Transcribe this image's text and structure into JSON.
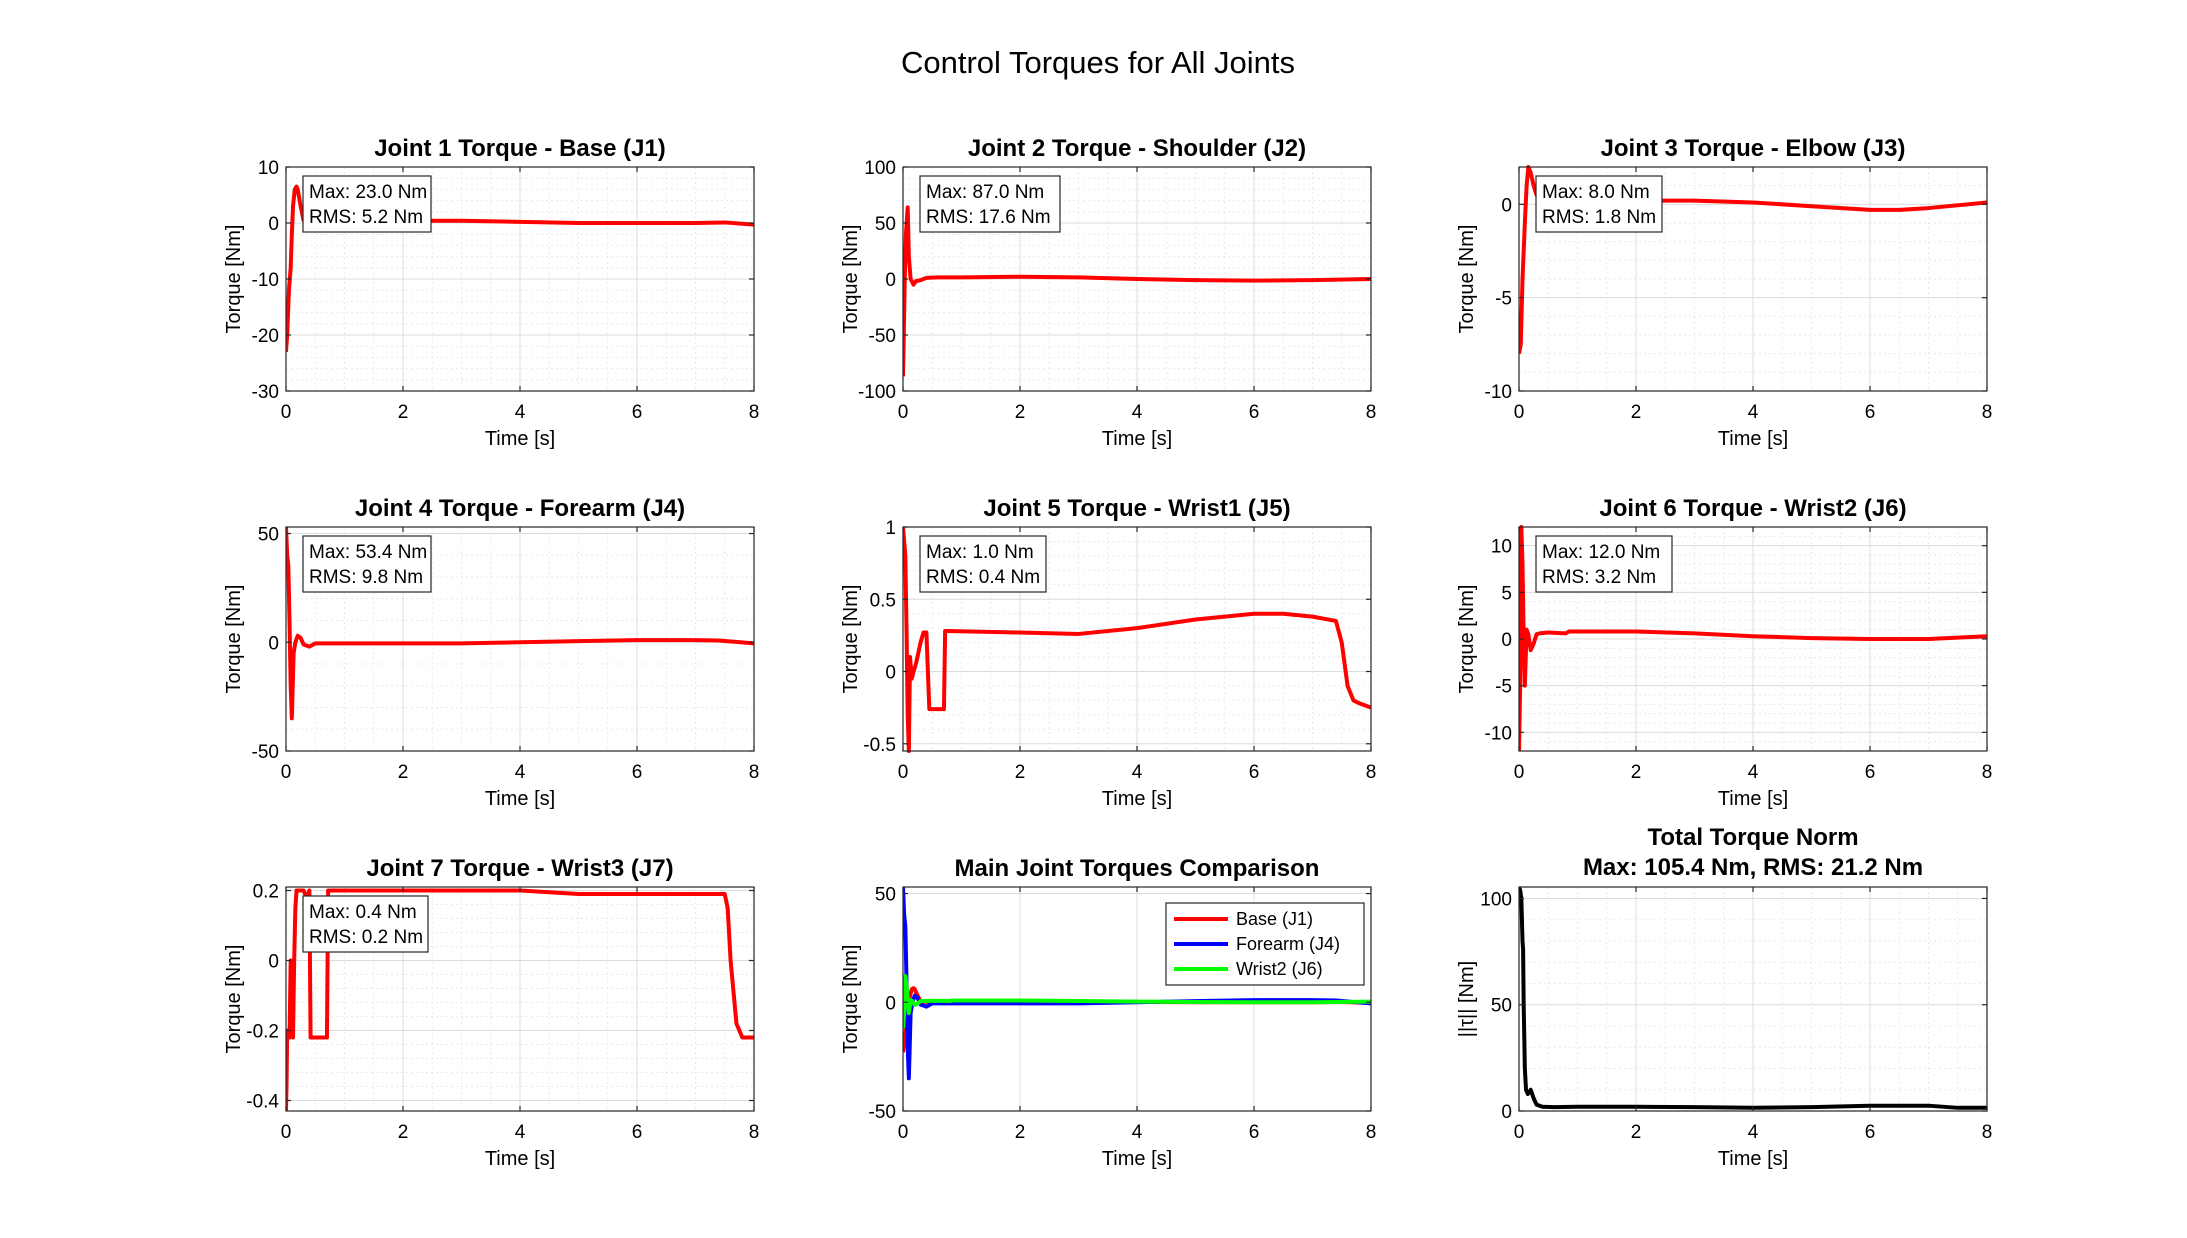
{
  "figure": {
    "title": "Control Torques for All Joints"
  },
  "chart_data": [
    {
      "type": "line",
      "title": "Joint 1 Torque - Base (J1)",
      "xlabel": "Time [s]",
      "ylabel": "Torque [Nm]",
      "xlim": [
        0,
        8
      ],
      "ylim": [
        -30,
        10
      ],
      "xticks": [
        "0",
        "2",
        "4",
        "6",
        "8"
      ],
      "yticks": [
        "-30",
        "-20",
        "-10",
        "0",
        "10"
      ],
      "grid": true,
      "minor_grid": true,
      "annotation": [
        "Max: 23.0 Nm",
        "RMS: 5.2 Nm"
      ],
      "series": [
        {
          "color": "#ff0000",
          "x": [
            0,
            0.02,
            0.05,
            0.08,
            0.1,
            0.12,
            0.15,
            0.18,
            0.2,
            0.25,
            0.3,
            0.4,
            0.6,
            1,
            2,
            3,
            4,
            5,
            6,
            7,
            7.5,
            8
          ],
          "y": [
            -23,
            -20,
            -12,
            -8,
            -2,
            3,
            6,
            6.5,
            6,
            3,
            0.5,
            0.2,
            0.4,
            0.4,
            0.4,
            0.4,
            0.2,
            0,
            0,
            0,
            0.1,
            -0.3
          ]
        }
      ]
    },
    {
      "type": "line",
      "title": "Joint 2 Torque - Shoulder (J2)",
      "xlabel": "Time [s]",
      "ylabel": "Torque [Nm]",
      "xlim": [
        0,
        8
      ],
      "ylim": [
        -100,
        100
      ],
      "xticks": [
        "0",
        "2",
        "4",
        "6",
        "8"
      ],
      "yticks": [
        "-100",
        "-50",
        "0",
        "50",
        "100"
      ],
      "grid": true,
      "minor_grid": true,
      "annotation": [
        "Max: 87.0 Nm",
        "RMS: 17.6 Nm"
      ],
      "series": [
        {
          "color": "#ff0000",
          "x": [
            0,
            0.01,
            0.03,
            0.05,
            0.08,
            0.1,
            0.13,
            0.18,
            0.22,
            0.3,
            0.4,
            0.6,
            1,
            2,
            3,
            4,
            5,
            6,
            7,
            8
          ],
          "y": [
            -87,
            -60,
            0,
            40,
            64,
            20,
            0,
            -5,
            -2,
            -1,
            1,
            1.5,
            1.5,
            2,
            1.5,
            0,
            -1,
            -1.5,
            -1,
            0
          ]
        }
      ]
    },
    {
      "type": "line",
      "title": "Joint 3 Torque - Elbow (J3)",
      "xlabel": "Time [s]",
      "ylabel": "Torque [Nm]",
      "xlim": [
        0,
        8
      ],
      "ylim": [
        -10,
        2
      ],
      "xticks": [
        "0",
        "2",
        "4",
        "6",
        "8"
      ],
      "yticks": [
        "-10",
        "-5",
        "0"
      ],
      "grid": true,
      "minor_grid": true,
      "annotation": [
        "Max: 8.0 Nm",
        "RMS: 1.8 Nm"
      ],
      "series": [
        {
          "color": "#ff0000",
          "x": [
            0,
            0.03,
            0.06,
            0.08,
            0.1,
            0.13,
            0.16,
            0.2,
            0.25,
            0.3,
            0.4,
            0.6,
            1,
            2,
            3,
            4,
            5,
            6,
            6.5,
            7,
            8
          ],
          "y": [
            -8,
            -7.5,
            -4,
            -2.5,
            -1,
            1,
            2,
            1.7,
            1,
            0.5,
            0.3,
            0.2,
            0.2,
            0.2,
            0.2,
            0.1,
            -0.1,
            -0.3,
            -0.3,
            -0.2,
            0.1
          ]
        }
      ]
    },
    {
      "type": "line",
      "title": "Joint 4 Torque - Forearm (J4)",
      "xlabel": "Time [s]",
      "ylabel": "Torque [Nm]",
      "xlim": [
        0,
        8
      ],
      "ylim": [
        -50,
        53
      ],
      "xticks": [
        "0",
        "2",
        "4",
        "6",
        "8"
      ],
      "yticks": [
        "-50",
        "0",
        "50"
      ],
      "grid": true,
      "minor_grid": true,
      "annotation": [
        "Max: 53.4 Nm",
        "RMS: 9.8 Nm"
      ],
      "series": [
        {
          "color": "#ff0000",
          "x": [
            0,
            0.02,
            0.04,
            0.06,
            0.08,
            0.1,
            0.13,
            0.16,
            0.2,
            0.25,
            0.3,
            0.4,
            0.5,
            1,
            2,
            3,
            4,
            5,
            6,
            7,
            7.4,
            8
          ],
          "y": [
            53,
            40,
            35,
            10,
            -20,
            -35,
            -5,
            0,
            3,
            2,
            -1,
            -2,
            -0.5,
            -0.5,
            -0.5,
            -0.5,
            0,
            0.5,
            1,
            1,
            0.8,
            -0.5
          ]
        }
      ]
    },
    {
      "type": "line",
      "title": "Joint 5 Torque - Wrist1 (J5)",
      "xlabel": "Time [s]",
      "ylabel": "Torque [Nm]",
      "xlim": [
        0,
        8
      ],
      "ylim": [
        -0.55,
        1
      ],
      "xticks": [
        "0",
        "2",
        "4",
        "6",
        "8"
      ],
      "yticks": [
        "-0.5",
        "0",
        "0.5",
        "1"
      ],
      "grid": true,
      "minor_grid": true,
      "annotation": [
        "Max: 1.0 Nm",
        "RMS: 0.4 Nm"
      ],
      "series": [
        {
          "color": "#ff0000",
          "x": [
            0,
            0.02,
            0.04,
            0.06,
            0.08,
            0.1,
            0.12,
            0.15,
            0.18,
            0.22,
            0.3,
            0.35,
            0.4,
            0.45,
            0.7,
            0.72,
            0.75,
            2,
            3,
            4,
            5,
            6,
            6.5,
            7,
            7.4,
            7.5,
            7.6,
            7.7,
            7.8,
            8
          ],
          "y": [
            1,
            0.9,
            0.8,
            0.3,
            -0.3,
            -0.55,
            0.1,
            -0.05,
            0,
            0.05,
            0.2,
            0.27,
            0.27,
            -0.26,
            -0.26,
            0.28,
            0.28,
            0.27,
            0.26,
            0.3,
            0.36,
            0.4,
            0.4,
            0.38,
            0.35,
            0.2,
            -0.1,
            -0.2,
            -0.22,
            -0.25
          ]
        }
      ]
    },
    {
      "type": "line",
      "title": "Joint 6 Torque - Wrist2 (J6)",
      "xlabel": "Time [s]",
      "ylabel": "Torque [Nm]",
      "xlim": [
        0,
        8
      ],
      "ylim": [
        -12,
        12
      ],
      "xticks": [
        "0",
        "2",
        "4",
        "6",
        "8"
      ],
      "yticks": [
        "-10",
        "-5",
        "0",
        "5",
        "10"
      ],
      "grid": true,
      "minor_grid": true,
      "annotation": [
        "Max: 12.0 Nm",
        "RMS: 3.2 Nm"
      ],
      "series": [
        {
          "color": "#ff0000",
          "x": [
            0,
            0.02,
            0.04,
            0.06,
            0.08,
            0.1,
            0.13,
            0.16,
            0.2,
            0.25,
            0.3,
            0.35,
            0.5,
            0.8,
            0.85,
            1,
            2,
            3,
            4,
            5,
            6,
            7,
            8
          ],
          "y": [
            -12,
            -5,
            12,
            8,
            0,
            -5,
            1,
            0.5,
            -1.2,
            -0.5,
            0.5,
            0.6,
            0.7,
            0.6,
            0.8,
            0.8,
            0.8,
            0.6,
            0.3,
            0.1,
            0,
            0,
            0.3
          ]
        }
      ]
    },
    {
      "type": "line",
      "title": "Joint 7 Torque - Wrist3 (J7)",
      "xlabel": "Time [s]",
      "ylabel": "Torque [Nm]",
      "xlim": [
        0,
        8
      ],
      "ylim": [
        -0.43,
        0.21
      ],
      "xticks": [
        "0",
        "2",
        "4",
        "6",
        "8"
      ],
      "yticks": [
        "-0.4",
        "-0.2",
        "0",
        "0.2"
      ],
      "grid": true,
      "minor_grid": true,
      "annotation": [
        "Max: 0.4 Nm",
        "RMS: 0.2 Nm"
      ],
      "series": [
        {
          "color": "#ff0000",
          "x": [
            0,
            0.01,
            0.02,
            0.04,
            0.06,
            0.08,
            0.1,
            0.12,
            0.14,
            0.16,
            0.18,
            0.22,
            0.3,
            0.35,
            0.4,
            0.42,
            0.7,
            0.72,
            0.75,
            2,
            3,
            4,
            5,
            6,
            7,
            7.4,
            7.5,
            7.55,
            7.6,
            7.7,
            7.8,
            8
          ],
          "y": [
            -0.43,
            -0.35,
            -0.2,
            -0.22,
            -0.22,
            0,
            -0.2,
            -0.22,
            0,
            0.15,
            0.2,
            0.2,
            0.2,
            0.18,
            0.2,
            -0.22,
            -0.22,
            0.2,
            0.2,
            0.2,
            0.2,
            0.2,
            0.19,
            0.19,
            0.19,
            0.19,
            0.19,
            0.15,
            0,
            -0.18,
            -0.22,
            -0.22
          ]
        }
      ]
    },
    {
      "type": "line",
      "title": "Main Joint Torques Comparison",
      "xlabel": "Time [s]",
      "ylabel": "Torque [Nm]",
      "xlim": [
        0,
        8
      ],
      "ylim": [
        -50,
        53
      ],
      "xticks": [
        "0",
        "2",
        "4",
        "6",
        "8"
      ],
      "yticks": [
        "-50",
        "0",
        "50"
      ],
      "grid": true,
      "minor_grid": false,
      "legend": "top-right",
      "series": [
        {
          "name": "Base (J1)",
          "color": "#ff0000",
          "x": [
            0,
            0.02,
            0.05,
            0.08,
            0.1,
            0.12,
            0.15,
            0.18,
            0.2,
            0.25,
            0.3,
            0.4,
            0.6,
            1,
            2,
            3,
            4,
            5,
            6,
            7,
            7.5,
            8
          ],
          "y": [
            -23,
            -20,
            -12,
            -8,
            -2,
            3,
            6,
            6.5,
            6,
            3,
            0.5,
            0.2,
            0.4,
            0.4,
            0.4,
            0.4,
            0.2,
            0,
            0,
            0,
            0.1,
            -0.3
          ]
        },
        {
          "name": "Forearm (J4)",
          "color": "#0000ff",
          "x": [
            0,
            0.02,
            0.04,
            0.06,
            0.08,
            0.1,
            0.13,
            0.16,
            0.2,
            0.25,
            0.3,
            0.4,
            0.5,
            1,
            2,
            3,
            4,
            5,
            6,
            7,
            7.4,
            8
          ],
          "y": [
            53,
            40,
            35,
            10,
            -20,
            -35,
            -5,
            0,
            3,
            2,
            -1,
            -2,
            -0.5,
            -0.5,
            -0.5,
            -0.5,
            0,
            0.5,
            1,
            1,
            0.8,
            -0.5
          ]
        },
        {
          "name": "Wrist2 (J6)",
          "color": "#00ff00",
          "x": [
            0,
            0.02,
            0.04,
            0.06,
            0.08,
            0.1,
            0.13,
            0.16,
            0.2,
            0.25,
            0.3,
            0.35,
            0.5,
            0.8,
            0.85,
            1,
            2,
            3,
            4,
            5,
            6,
            7,
            8
          ],
          "y": [
            -12,
            -5,
            12,
            8,
            0,
            -5,
            1,
            0.5,
            -1.2,
            -0.5,
            0.5,
            0.6,
            0.7,
            0.6,
            0.8,
            0.8,
            0.8,
            0.6,
            0.3,
            0.1,
            0,
            0,
            0.3
          ]
        }
      ]
    },
    {
      "type": "line",
      "title": "Total Torque Norm",
      "subtitle": "Max: 105.4 Nm, RMS: 21.2 Nm",
      "xlabel": "Time [s]",
      "ylabel": "||τ|| [Nm]",
      "xlim": [
        0,
        8
      ],
      "ylim": [
        0,
        105.4
      ],
      "xticks": [
        "0",
        "2",
        "4",
        "6",
        "8"
      ],
      "yticks": [
        "0",
        "50",
        "100"
      ],
      "grid": true,
      "minor_grid": true,
      "series": [
        {
          "color": "#000000",
          "x": [
            0,
            0.02,
            0.04,
            0.06,
            0.07,
            0.08,
            0.1,
            0.12,
            0.15,
            0.18,
            0.2,
            0.25,
            0.3,
            0.4,
            0.6,
            1,
            2,
            3,
            4,
            5,
            6,
            7,
            7.5,
            8
          ],
          "y": [
            105,
            104,
            100,
            80,
            76,
            50,
            20,
            10,
            8,
            9,
            10,
            6,
            3,
            2,
            1.8,
            2,
            2,
            1.8,
            1.5,
            1.8,
            2.5,
            2.5,
            1.5,
            1.5
          ]
        }
      ]
    }
  ]
}
